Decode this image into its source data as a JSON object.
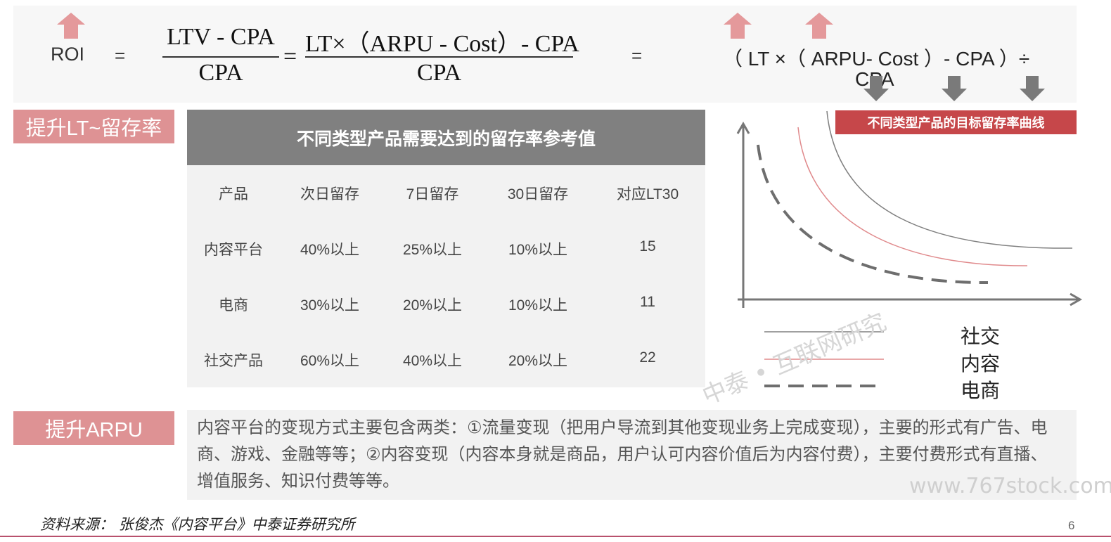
{
  "formula": {
    "roi_label": "ROI",
    "equals": "=",
    "frac1_numerator": "LTV - CPA",
    "frac1_denominator": "CPA",
    "frac2_numerator": "LT×（ARPU - Cost）- CPA",
    "frac2_denominator": "CPA",
    "expanded_line1": "（ LT ×（ ARPU- Cost ）- CPA ）÷",
    "expanded_line2": "CPA"
  },
  "sections": {
    "lt_tag": "提升LT~留存率",
    "arpu_tag": "提升ARPU"
  },
  "table": {
    "title": "不同类型产品需要达到的留存率参考值",
    "headers": [
      "产品",
      "次日留存",
      "7日留存",
      "30日留存",
      "对应LT30"
    ],
    "rows": [
      [
        "内容平台",
        "40%以上",
        "25%以上",
        "10%以上",
        "15"
      ],
      [
        "电商",
        "30%以上",
        "20%以上",
        "10%以上",
        "11"
      ],
      [
        "社交产品",
        "60%以上",
        "40%以上",
        "20%以上",
        "22"
      ]
    ]
  },
  "chart": {
    "title": "不同类型产品的目标留存率曲线",
    "legend": [
      {
        "label": "社交",
        "color": "#808080",
        "style": "solid-thin"
      },
      {
        "label": "内容",
        "color": "#e08a8c",
        "style": "solid-thin"
      },
      {
        "label": "电商",
        "color": "#707070",
        "style": "dashed-thick"
      }
    ]
  },
  "description": "内容平台的变现方式主要包含两类：①流量变现（把用户导流到其他变现业务上完成变现），主要的形式有广告、电商、游戏、金融等等；②内容变现（内容本身就是商品，用户认可内容价值后为内容付费），主要付费形式有直播、增值服务、知识付费等等。",
  "source": "资料来源： 张俊杰《内容平台》中泰证券研究所",
  "page_number": "6",
  "watermarks": {
    "center": "中泰 • 互联网研究",
    "site": "www.767stock.com"
  },
  "colors": {
    "accent_pink": "#de9294",
    "accent_red": "#c6474a",
    "table_header_gray": "#808080",
    "panel_gray": "#f2f2f2",
    "down_arrow_gray": "#7a7a7a"
  }
}
